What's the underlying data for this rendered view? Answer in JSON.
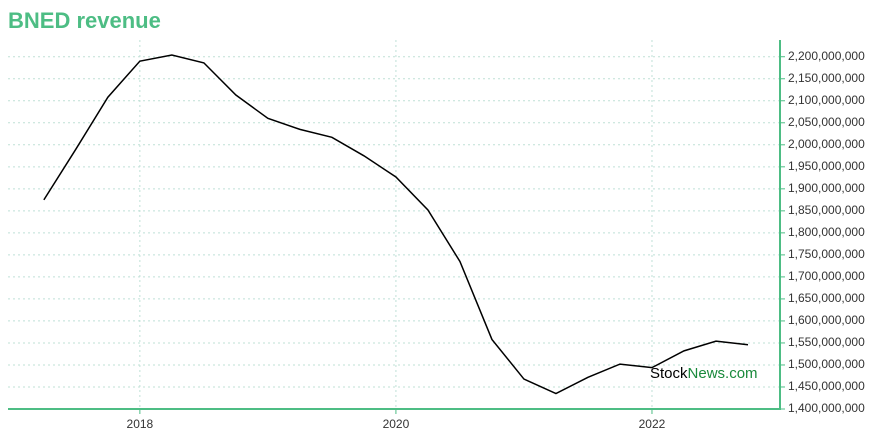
{
  "chart_data": {
    "type": "line",
    "title": "BNED revenue",
    "x": [
      2017.25,
      2017.5,
      2017.75,
      2018.0,
      2018.25,
      2018.5,
      2018.75,
      2019.0,
      2019.25,
      2019.5,
      2019.75,
      2020.0,
      2020.25,
      2020.5,
      2020.75,
      2021.0,
      2021.25,
      2021.5,
      2021.75,
      2022.0,
      2022.25,
      2022.5,
      2022.75
    ],
    "series": [
      {
        "color": "#000000",
        "values": [
          1875000000,
          1990000000,
          2108000000,
          2190000000,
          2204000000,
          2186000000,
          2113000000,
          2060000000,
          2035000000,
          2017000000,
          1975000000,
          1927000000,
          1852000000,
          1735000000,
          1558000000,
          1468000000,
          1435000000,
          1472000000,
          1502000000,
          1494000000,
          1532000000,
          1554000000,
          1546000000
        ]
      }
    ],
    "xlim": [
      2016.97,
      2023.0
    ],
    "xticks": [
      2018,
      2020,
      2022
    ],
    "ylim": [
      1400000000,
      2238000000
    ],
    "yticks": [
      {
        "value": 1400000000,
        "label": "1,400,000,000"
      },
      {
        "value": 1450000000,
        "label": "1,450,000,000"
      },
      {
        "value": 1500000000,
        "label": "1,500,000,000"
      },
      {
        "value": 1550000000,
        "label": "1,550,000,000"
      },
      {
        "value": 1600000000,
        "label": "1,600,000,000"
      },
      {
        "value": 1650000000,
        "label": "1,650,000,000"
      },
      {
        "value": 1700000000,
        "label": "1,700,000,000"
      },
      {
        "value": 1750000000,
        "label": "1,750,000,000"
      },
      {
        "value": 1800000000,
        "label": "1,800,000,000"
      },
      {
        "value": 1850000000,
        "label": "1,850,000,000"
      },
      {
        "value": 1900000000,
        "label": "1,900,000,000"
      },
      {
        "value": 1950000000,
        "label": "1,950,000,000"
      },
      {
        "value": 2000000000,
        "label": "2,000,000,000"
      },
      {
        "value": 2050000000,
        "label": "2,050,000,000"
      },
      {
        "value": 2100000000,
        "label": "2,100,000,000"
      },
      {
        "value": 2150000000,
        "label": "2,150,000,000"
      },
      {
        "value": 2200000000,
        "label": "2,200,000,000"
      }
    ],
    "grid": true,
    "watermark": {
      "part1": "Stock",
      "part2": "News.com"
    }
  }
}
